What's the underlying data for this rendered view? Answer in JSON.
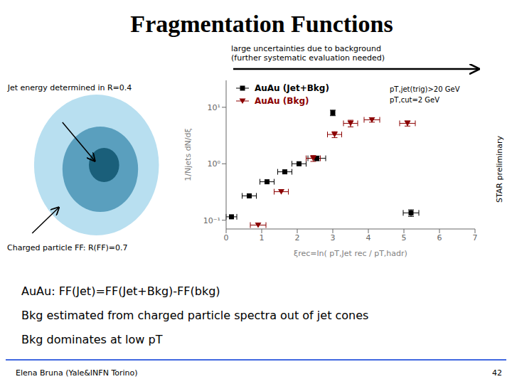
{
  "chart_data": {
    "type": "scatter",
    "title": "Fragmentation Functions",
    "x_label": "ξrec=ln( pT,Jet rec / pT,hadr)",
    "y_label": "1/Njets dN/dξ",
    "annotations": [
      "Jet energy determined in R=0.4",
      "Charged particle FF: R(FF)=0.7",
      "STAR preliminary",
      "pT,jet(trig)>20 GeV",
      "pT,cut=2 GeV",
      "large uncertainties due to background\n(further systematic evaluation needed)",
      "AuAu:  FF(Jet)=FF(Jet+Bkg)-FF(bkg)",
      "Bkg estimated from charged particle spectra out of jet cones",
      "Bkg dominates at low pT",
      "Elena Bruna (Yale&INFN Torino)",
      "42"
    ],
    "log": "y",
    "grid": false,
    "legend": "upper left",
    "xlim": [
      0,
      7
    ],
    "xticks": [
      0,
      1,
      2,
      3,
      4,
      5,
      6,
      7
    ],
    "ylim": [
      0.07,
      30
    ],
    "yticks": [
      {
        "value": 0.1,
        "label": "10⁻¹"
      },
      {
        "value": 1,
        "label": "10⁰"
      },
      {
        "value": 10,
        "label": "10¹"
      }
    ],
    "series": [
      {
        "name": "AuAu (Jet+Bkg)",
        "color": "#000000",
        "marker": "square",
        "x": [
          0.15,
          0.65,
          1.15,
          1.65,
          2.05,
          2.55,
          3.0,
          5.2
        ],
        "values": [
          0.115,
          0.27,
          0.48,
          0.72,
          1.0,
          1.25,
          8.0,
          0.135
        ],
        "x_error": [
          0.15,
          0.2,
          0.2,
          0.2,
          0.2,
          0.25,
          0.0,
          0.22
        ],
        "y_error": [
          0.0,
          0.0,
          0.0,
          0.0,
          0.0,
          0.12,
          0.9,
          0.018
        ]
      },
      {
        "name": "AuAu (Bkg)",
        "color": "#8b0000",
        "marker": "triangle-down",
        "x": [
          0.9,
          1.55,
          2.45,
          3.05,
          3.5,
          4.1,
          5.1
        ],
        "values": [
          0.082,
          0.32,
          1.25,
          3.3,
          5.2,
          6.0,
          5.2
        ],
        "x_error": [
          0.22,
          0.2,
          0.2,
          0.2,
          0.2,
          0.22,
          0.22
        ],
        "y_error": [
          0.0,
          0.0,
          0.15,
          0.4,
          0.7,
          0.55,
          0.55
        ]
      }
    ]
  }
}
